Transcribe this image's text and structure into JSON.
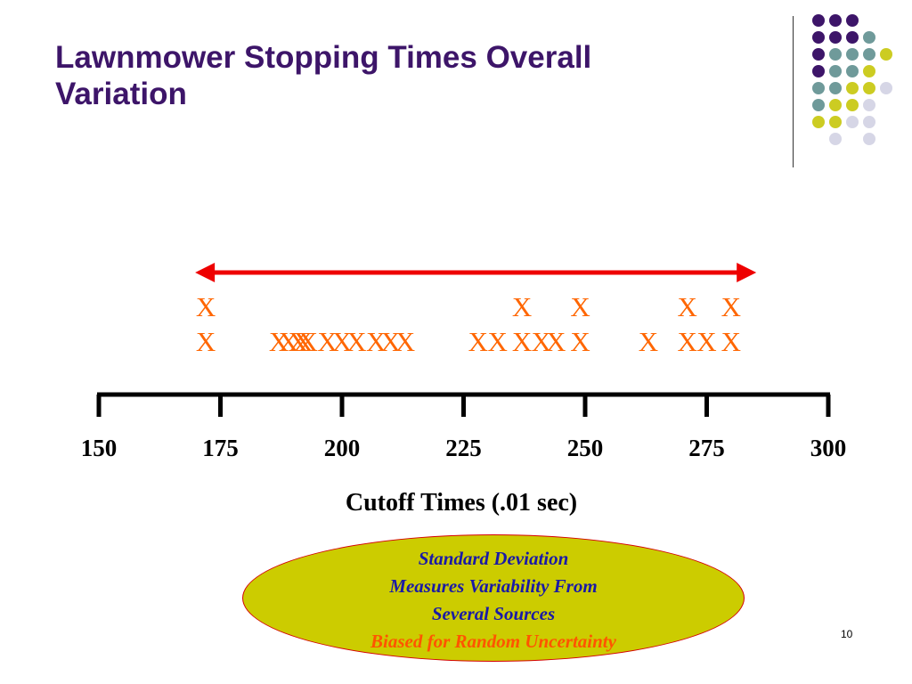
{
  "slide": {
    "title_lines": [
      "Lawnmower Stopping Times Overall",
      "Variation"
    ],
    "page_number": "10"
  },
  "colors": {
    "title": "#3d1569",
    "marks": "#ff6600",
    "range_arrow": "#ee0000",
    "oval_fill": "#cccc00",
    "oval_text": "#1a1aa6",
    "oval_highlight": "#ff5500"
  },
  "chart_data": {
    "type": "scatter",
    "subtype": "dot-plot",
    "marker": "X",
    "xlabel": "Cutoff Times (.01 sec)",
    "xlim": [
      150,
      300
    ],
    "xticks": [
      150,
      175,
      200,
      225,
      250,
      275,
      300
    ],
    "tick_labels": [
      "150",
      "175",
      "200",
      "225",
      "250",
      "275",
      "300"
    ],
    "range_arrow": [
      172,
      283
    ],
    "points": [
      {
        "x": 172,
        "count": 2
      },
      {
        "x": 187,
        "count": 1
      },
      {
        "x": 189,
        "count": 1
      },
      {
        "x": 191,
        "count": 1
      },
      {
        "x": 192,
        "count": 1
      },
      {
        "x": 193,
        "count": 1
      },
      {
        "x": 197,
        "count": 1
      },
      {
        "x": 200,
        "count": 1
      },
      {
        "x": 203,
        "count": 1
      },
      {
        "x": 207,
        "count": 1
      },
      {
        "x": 210,
        "count": 1
      },
      {
        "x": 213,
        "count": 1
      },
      {
        "x": 228,
        "count": 1
      },
      {
        "x": 232,
        "count": 1
      },
      {
        "x": 237,
        "count": 2
      },
      {
        "x": 241,
        "count": 1
      },
      {
        "x": 244,
        "count": 1
      },
      {
        "x": 249,
        "count": 2
      },
      {
        "x": 263,
        "count": 1
      },
      {
        "x": 271,
        "count": 2
      },
      {
        "x": 275,
        "count": 1
      },
      {
        "x": 280,
        "count": 2
      }
    ]
  },
  "callout": {
    "lines": [
      "Standard Deviation",
      "Measures Variability From",
      "Several Sources"
    ],
    "highlight": "Biased for Random Uncertainty"
  },
  "decoration": {
    "dot_grid": [
      [
        "#3d1569",
        "#3d1569",
        "#3d1569",
        null
      ],
      [
        "#3d1569",
        "#3d1569",
        "#3d1569",
        "#6f9a9a"
      ],
      [
        "#3d1569",
        "#6f9a9a",
        "#6f9a9a",
        "#6f9a9a",
        "#cccc22"
      ],
      [
        "#3d1569",
        "#6f9a9a",
        "#6f9a9a",
        "#cccc22"
      ],
      [
        "#6f9a9a",
        "#6f9a9a",
        "#cccc22",
        "#cccc22",
        "#d6d6e6"
      ],
      [
        "#6f9a9a",
        "#cccc22",
        "#cccc22",
        "#d6d6e6"
      ],
      [
        "#cccc22",
        "#cccc22",
        "#d6d6e6",
        "#d6d6e6"
      ],
      [
        null,
        "#d6d6e6",
        null,
        "#d6d6e6"
      ]
    ]
  }
}
